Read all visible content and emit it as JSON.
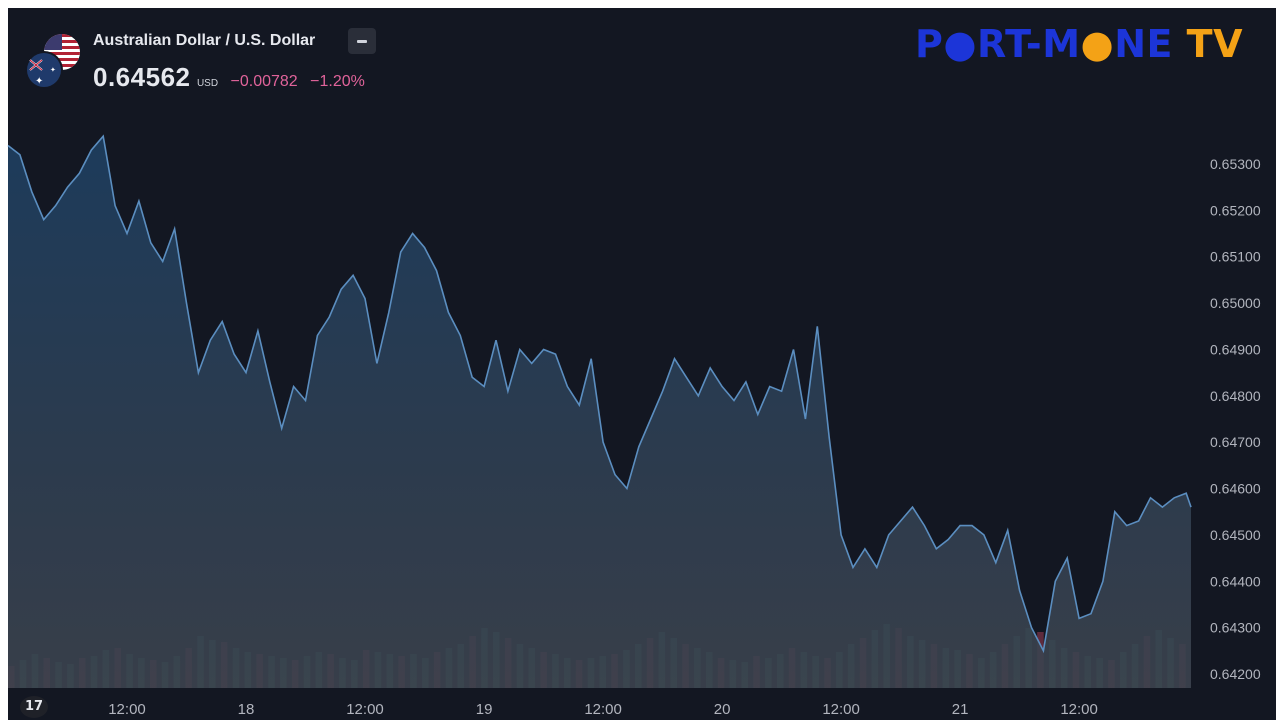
{
  "header": {
    "pair_name": "Australian Dollar / U.S. Dollar",
    "price": "0.64562",
    "currency": "USD",
    "change": "−0.00782",
    "change_pct": "−1.20%"
  },
  "watermark": {
    "part1": "P",
    "o1": "●",
    "part2": "RT-M",
    "o2": "●",
    "part3": "NE",
    "part4": " TV"
  },
  "icons": {
    "flags": "aud-usd-flags-icon",
    "collapse": "minus-icon",
    "tradingview": "tradingview-logo-icon"
  },
  "colors": {
    "background": "#131722",
    "line": "#5b8ec0",
    "change_negative": "#e0639a",
    "volume_up": "#2f6b5d",
    "volume_down": "#7a3347",
    "logo_blue": "#1c35d8",
    "logo_orange": "#f4a216"
  },
  "chart_data": {
    "type": "area",
    "title": "Australian Dollar / U.S. Dollar",
    "y_tick_labels": [
      "0.65300",
      "0.65200",
      "0.65100",
      "0.65000",
      "0.64900",
      "0.64800",
      "0.64700",
      "0.64600",
      "0.64500",
      "0.64400",
      "0.64300",
      "0.64200"
    ],
    "ylim": [
      0.6418,
      0.6539
    ],
    "x_tick_labels": [
      "12:00",
      "18",
      "12:00",
      "19",
      "12:00",
      "20",
      "12:00",
      "21",
      "12:00"
    ],
    "x_tick_positions": [
      0.5,
      1.0,
      1.5,
      2.0,
      2.5,
      3.0,
      3.5,
      4.0,
      4.5
    ],
    "xlim": [
      0.0,
      4.97
    ],
    "grid": false,
    "series": [
      {
        "x": [
          0.0,
          0.05,
          0.1,
          0.15,
          0.2,
          0.25,
          0.3,
          0.35,
          0.4,
          0.43,
          0.45,
          0.5,
          0.55,
          0.6,
          0.65,
          0.7,
          0.75,
          0.8,
          0.85,
          0.9,
          0.95,
          1.0,
          1.05,
          1.1,
          1.15,
          1.2,
          1.25,
          1.3,
          1.35,
          1.4,
          1.45,
          1.5,
          1.55,
          1.6,
          1.65,
          1.7,
          1.75,
          1.8,
          1.85,
          1.9,
          1.95,
          2.0,
          2.05,
          2.1,
          2.15,
          2.2,
          2.25,
          2.3,
          2.35,
          2.4,
          2.45,
          2.5,
          2.55,
          2.6,
          2.65,
          2.7,
          2.75,
          2.8,
          2.85,
          2.9,
          2.95,
          3.0,
          3.05,
          3.1,
          3.15,
          3.2,
          3.25,
          3.3,
          3.35,
          3.4,
          3.45,
          3.5,
          3.55,
          3.6,
          3.65,
          3.7,
          3.75,
          3.8,
          3.85,
          3.9,
          3.95,
          4.0,
          4.05,
          4.1,
          4.15,
          4.2,
          4.25,
          4.3,
          4.35,
          4.4,
          4.45,
          4.5,
          4.55,
          4.6,
          4.65,
          4.7,
          4.75,
          4.8,
          4.85,
          4.9,
          4.95,
          4.97
        ],
        "values": [
          0.6534,
          0.6532,
          0.6524,
          0.6518,
          0.6521,
          0.6525,
          0.6528,
          0.6533,
          0.6536,
          0.6527,
          0.6521,
          0.6515,
          0.6522,
          0.6513,
          0.6509,
          0.6516,
          0.65,
          0.6485,
          0.6492,
          0.6496,
          0.6489,
          0.6485,
          0.6494,
          0.6483,
          0.6473,
          0.6482,
          0.6479,
          0.6493,
          0.6497,
          0.6503,
          0.6506,
          0.6501,
          0.6487,
          0.6498,
          0.6511,
          0.6515,
          0.6512,
          0.6507,
          0.6498,
          0.6493,
          0.6484,
          0.6482,
          0.6492,
          0.6481,
          0.649,
          0.6487,
          0.649,
          0.6489,
          0.6482,
          0.6478,
          0.6488,
          0.647,
          0.6463,
          0.646,
          0.6469,
          0.6475,
          0.6481,
          0.6488,
          0.6484,
          0.648,
          0.6486,
          0.6482,
          0.6479,
          0.6483,
          0.6476,
          0.6482,
          0.6481,
          0.649,
          0.6475,
          0.6495,
          0.6471,
          0.645,
          0.6443,
          0.6447,
          0.6443,
          0.645,
          0.6453,
          0.6456,
          0.6452,
          0.6447,
          0.6449,
          0.6452,
          0.6452,
          0.645,
          0.6444,
          0.6451,
          0.6438,
          0.643,
          0.6425,
          0.644,
          0.6445,
          0.6432,
          0.6433,
          0.644,
          0.6455,
          0.6452,
          0.6453,
          0.6458,
          0.6456,
          0.6458,
          0.6459,
          0.6456
        ]
      }
    ],
    "volume": {
      "start": 0.0,
      "end": 4.97,
      "values": [
        22,
        28,
        34,
        30,
        26,
        24,
        30,
        32,
        38,
        40,
        34,
        30,
        28,
        26,
        32,
        40,
        52,
        48,
        46,
        40,
        36,
        34,
        32,
        30,
        28,
        32,
        36,
        34,
        30,
        28,
        38,
        36,
        34,
        32,
        34,
        30,
        36,
        40,
        44,
        52,
        60,
        56,
        50,
        44,
        40,
        36,
        34,
        30,
        28,
        30,
        32,
        34,
        38,
        44,
        50,
        56,
        50,
        44,
        40,
        36,
        30,
        28,
        26,
        32,
        30,
        34,
        40,
        36,
        32,
        30,
        36,
        44,
        50,
        58,
        64,
        60,
        52,
        48,
        44,
        40,
        38,
        34,
        30,
        36,
        44,
        52,
        60,
        56,
        48,
        40,
        36,
        32,
        30,
        28,
        36,
        44,
        52,
        58,
        50,
        44
      ]
    }
  }
}
